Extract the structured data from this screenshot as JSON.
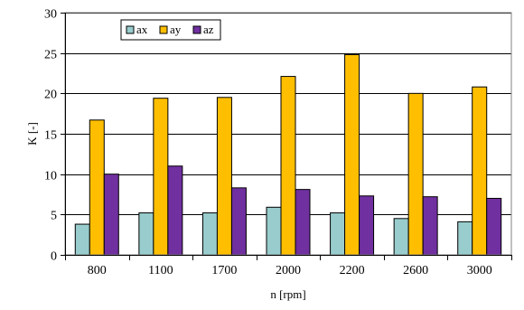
{
  "chart_data": {
    "type": "bar",
    "title": "",
    "xlabel": "n [rpm]",
    "ylabel": "K [-]",
    "categories": [
      "800",
      "1100",
      "1700",
      "2000",
      "2200",
      "2600",
      "3000"
    ],
    "series": [
      {
        "name": "ax",
        "color": "#99cccc",
        "values": [
          3.8,
          5.2,
          5.2,
          5.9,
          5.2,
          4.5,
          4.1
        ]
      },
      {
        "name": "ay",
        "color": "#ffbf00",
        "values": [
          16.7,
          19.4,
          19.5,
          22.1,
          24.8,
          20.0,
          20.8
        ]
      },
      {
        "name": "az",
        "color": "#7030a0",
        "values": [
          10.0,
          11.0,
          8.3,
          8.1,
          7.3,
          7.2,
          7.0
        ]
      }
    ],
    "ylim": [
      0,
      30
    ],
    "yticks": [
      0,
      5,
      10,
      15,
      20,
      25,
      30
    ],
    "grid": true,
    "legend_position": "top-left"
  }
}
